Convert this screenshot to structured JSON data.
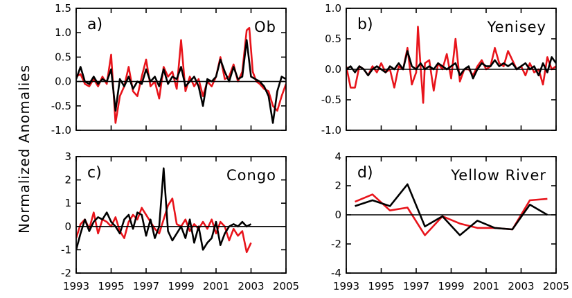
{
  "ylabel": "Normalized Anomalies",
  "colors": {
    "series_a": "#e8141b",
    "series_b": "#000000",
    "axes": "#000000"
  },
  "chart_data": [
    {
      "type": "line",
      "panel": "a)",
      "title": "Ob",
      "xlim": [
        1993,
        2005
      ],
      "ylim": [
        -1.0,
        1.5
      ],
      "yticks": [
        -1.0,
        -0.5,
        0.0,
        0.5,
        1.0,
        1.5
      ],
      "yticklabels": [
        "-1.0",
        "-0.5",
        "0.0",
        "0.5",
        "1.0",
        "1.5"
      ],
      "xticks": [
        1993,
        1995,
        1997,
        1999,
        2001,
        2003,
        2005
      ],
      "xticklabels": [],
      "zero_line": true,
      "series": [
        {
          "color": "#e8141b",
          "x": [
            1993.0,
            1993.25,
            1993.5,
            1993.75,
            1994.0,
            1994.25,
            1994.5,
            1994.75,
            1995.0,
            1995.25,
            1995.5,
            1995.75,
            1996.0,
            1996.25,
            1996.5,
            1996.75,
            1997.0,
            1997.25,
            1997.5,
            1997.75,
            1998.0,
            1998.25,
            1998.5,
            1998.75,
            1999.0,
            1999.25,
            1999.5,
            1999.75,
            2000.0,
            2000.25,
            2000.5,
            2000.75,
            2001.0,
            2001.25,
            2001.5,
            2001.75,
            2002.0,
            2002.25,
            2002.5,
            2002.75,
            2002.9,
            2003.1,
            2003.3,
            2003.5,
            2003.75,
            2004.0,
            2004.25,
            2004.5,
            2004.75,
            2005.0
          ],
          "y": [
            0.1,
            0.15,
            -0.05,
            -0.1,
            0.05,
            -0.1,
            0.1,
            -0.05,
            0.55,
            -0.85,
            -0.3,
            -0.1,
            0.3,
            -0.2,
            -0.3,
            0.1,
            0.45,
            -0.1,
            0.0,
            -0.35,
            0.3,
            0.1,
            0.2,
            -0.15,
            0.85,
            -0.2,
            0.1,
            -0.1,
            0.05,
            -0.3,
            0.0,
            -0.1,
            0.1,
            0.5,
            0.05,
            0.1,
            0.35,
            0.0,
            0.2,
            1.05,
            1.1,
            0.2,
            0.0,
            -0.05,
            -0.15,
            -0.2,
            -0.5,
            -0.6,
            -0.3,
            -0.05
          ]
        },
        {
          "color": "#000000",
          "x": [
            1993.0,
            1993.25,
            1993.5,
            1993.75,
            1994.0,
            1994.25,
            1994.5,
            1994.75,
            1995.0,
            1995.25,
            1995.5,
            1995.75,
            1996.0,
            1996.25,
            1996.5,
            1996.75,
            1997.0,
            1997.25,
            1997.5,
            1997.75,
            1998.0,
            1998.25,
            1998.5,
            1998.75,
            1999.0,
            1999.25,
            1999.5,
            1999.75,
            2000.0,
            2000.25,
            2000.5,
            2000.75,
            2001.0,
            2001.25,
            2001.5,
            2001.75,
            2002.0,
            2002.25,
            2002.5,
            2002.75,
            2003.0,
            2003.25,
            2003.5,
            2003.75,
            2004.0,
            2004.25,
            2004.5,
            2004.75,
            2005.0
          ],
          "y": [
            0.05,
            0.3,
            0.0,
            -0.05,
            0.1,
            -0.05,
            0.05,
            0.0,
            0.25,
            -0.6,
            0.05,
            -0.1,
            0.1,
            -0.15,
            0.0,
            -0.05,
            0.25,
            0.0,
            0.1,
            -0.1,
            0.25,
            -0.05,
            0.1,
            0.05,
            0.3,
            -0.1,
            0.0,
            0.1,
            -0.1,
            -0.5,
            0.05,
            0.0,
            0.1,
            0.45,
            0.2,
            0.0,
            0.3,
            0.05,
            0.1,
            0.85,
            0.1,
            0.05,
            0.0,
            -0.1,
            -0.3,
            -0.85,
            -0.2,
            0.1,
            0.05
          ]
        }
      ]
    },
    {
      "type": "line",
      "panel": "b)",
      "title": "Yenisey",
      "xlim": [
        1993,
        2005
      ],
      "ylim": [
        -1.0,
        1.0
      ],
      "yticks": [
        -1.0,
        -0.5,
        0.0,
        0.5,
        1.0
      ],
      "yticklabels": [
        "-1.0",
        "-0.5",
        "0.0",
        "0.5",
        "1.0"
      ],
      "xticks": [
        1993,
        1995,
        1997,
        1999,
        2001,
        2003,
        2005
      ],
      "xticklabels": [],
      "zero_line": true,
      "series": [
        {
          "color": "#e8141b",
          "x": [
            1993.0,
            1993.25,
            1993.5,
            1993.75,
            1994.0,
            1994.25,
            1994.5,
            1994.75,
            1995.0,
            1995.25,
            1995.5,
            1995.75,
            1996.0,
            1996.25,
            1996.5,
            1996.75,
            1997.0,
            1997.1,
            1997.25,
            1997.4,
            1997.5,
            1997.75,
            1998.0,
            1998.25,
            1998.5,
            1998.75,
            1999.0,
            1999.25,
            1999.5,
            1999.75,
            2000.0,
            2000.25,
            2000.5,
            2000.75,
            2001.0,
            2001.25,
            2001.5,
            2001.75,
            2002.0,
            2002.25,
            2002.5,
            2002.75,
            2003.0,
            2003.25,
            2003.5,
            2003.75,
            2004.0,
            2004.25,
            2004.5,
            2004.75,
            2005.0
          ],
          "y": [
            0.05,
            -0.3,
            -0.3,
            0.05,
            0.0,
            -0.1,
            0.05,
            -0.05,
            0.1,
            -0.05,
            0.0,
            -0.3,
            0.05,
            0.0,
            0.35,
            -0.25,
            -0.05,
            0.7,
            0.05,
            -0.55,
            0.1,
            0.15,
            -0.35,
            0.1,
            0.0,
            0.25,
            -0.15,
            0.5,
            -0.2,
            0.0,
            0.0,
            -0.1,
            0.05,
            0.15,
            0.0,
            0.05,
            0.35,
            0.1,
            0.05,
            0.3,
            0.15,
            0.0,
            0.05,
            -0.1,
            0.1,
            -0.05,
            0.0,
            -0.25,
            0.2,
            0.0,
            0.05
          ]
        },
        {
          "color": "#000000",
          "x": [
            1993.0,
            1993.25,
            1993.5,
            1993.75,
            1994.0,
            1994.25,
            1994.5,
            1994.75,
            1995.0,
            1995.25,
            1995.5,
            1995.75,
            1996.0,
            1996.25,
            1996.5,
            1996.75,
            1997.0,
            1997.25,
            1997.5,
            1997.75,
            1998.0,
            1998.25,
            1998.5,
            1998.75,
            1999.0,
            1999.25,
            1999.5,
            1999.75,
            2000.0,
            2000.25,
            2000.5,
            2000.75,
            2001.0,
            2001.25,
            2001.5,
            2001.75,
            2002.0,
            2002.25,
            2002.5,
            2002.75,
            2003.0,
            2003.25,
            2003.5,
            2003.75,
            2004.0,
            2004.25,
            2004.5,
            2004.75,
            2005.0
          ],
          "y": [
            0.0,
            0.05,
            -0.05,
            0.05,
            0.0,
            -0.1,
            0.0,
            0.05,
            0.0,
            -0.05,
            0.05,
            0.0,
            0.1,
            0.0,
            0.3,
            0.05,
            0.0,
            0.1,
            0.0,
            0.05,
            0.0,
            0.1,
            0.05,
            0.0,
            0.05,
            0.1,
            -0.1,
            0.0,
            0.05,
            -0.15,
            0.0,
            0.1,
            0.05,
            0.05,
            0.15,
            0.05,
            0.1,
            0.05,
            0.1,
            0.0,
            0.05,
            0.1,
            0.0,
            0.05,
            -0.1,
            0.1,
            -0.05,
            0.2,
            0.1
          ]
        }
      ]
    },
    {
      "type": "line",
      "panel": "c)",
      "title": "Congo",
      "xlim": [
        1993,
        2005
      ],
      "ylim": [
        -2,
        3
      ],
      "yticks": [
        -2,
        -1,
        0,
        1,
        2,
        3
      ],
      "yticklabels": [
        "-2",
        "-1",
        "0",
        "1",
        "2",
        "3"
      ],
      "xticks": [
        1993,
        1995,
        1997,
        1999,
        2001,
        2003,
        2005
      ],
      "xticklabels": [
        "1993",
        "1995",
        "1997",
        "1999",
        "2001",
        "2003",
        "2005"
      ],
      "zero_line": true,
      "series": [
        {
          "color": "#e8141b",
          "x": [
            1993.0,
            1993.25,
            1993.5,
            1993.75,
            1994.0,
            1994.25,
            1994.5,
            1994.75,
            1995.0,
            1995.25,
            1995.5,
            1995.75,
            1996.0,
            1996.25,
            1996.5,
            1996.75,
            1997.0,
            1997.25,
            1997.5,
            1997.75,
            1998.0,
            1998.25,
            1998.5,
            1998.75,
            1999.0,
            1999.25,
            1999.5,
            1999.75,
            2000.0,
            2000.25,
            2000.5,
            2000.75,
            2001.0,
            2001.25,
            2001.5,
            2001.75,
            2002.0,
            2002.25,
            2002.5,
            2002.75,
            2003.0
          ],
          "y": [
            -0.5,
            0.1,
            0.3,
            -0.1,
            0.6,
            -0.3,
            0.3,
            0.2,
            0.0,
            0.4,
            -0.2,
            -0.5,
            0.2,
            0.5,
            0.3,
            0.8,
            0.5,
            0.2,
            -0.1,
            -0.3,
            0.3,
            0.9,
            1.2,
            0.1,
            0.0,
            0.3,
            -0.2,
            0.1,
            -0.1,
            0.2,
            -0.1,
            0.3,
            -0.3,
            0.2,
            0.0,
            -0.6,
            -0.1,
            -0.4,
            -0.2,
            -1.1,
            -0.7
          ]
        },
        {
          "color": "#000000",
          "x": [
            1993.0,
            1993.25,
            1993.5,
            1993.75,
            1994.0,
            1994.25,
            1994.5,
            1994.75,
            1995.0,
            1995.25,
            1995.5,
            1995.75,
            1996.0,
            1996.25,
            1996.5,
            1996.75,
            1997.0,
            1997.25,
            1997.5,
            1997.75,
            1998.0,
            1998.25,
            1998.5,
            1998.75,
            1999.0,
            1999.25,
            1999.5,
            1999.75,
            2000.0,
            2000.25,
            2000.5,
            2000.75,
            2001.0,
            2001.25,
            2001.5,
            2001.75,
            2002.0,
            2002.25,
            2002.5,
            2002.75,
            2003.0
          ],
          "y": [
            -1.0,
            -0.3,
            0.3,
            -0.2,
            0.2,
            0.4,
            0.3,
            0.6,
            0.2,
            0.0,
            -0.3,
            0.3,
            0.5,
            -0.1,
            0.6,
            0.5,
            -0.4,
            0.3,
            -0.5,
            0.0,
            2.5,
            -0.2,
            -0.6,
            -0.3,
            0.0,
            -0.5,
            0.3,
            -0.7,
            0.0,
            -1.0,
            -0.7,
            -0.5,
            0.2,
            -0.8,
            -0.3,
            0.0,
            0.1,
            0.0,
            0.2,
            0.0,
            0.1
          ]
        }
      ]
    },
    {
      "type": "line",
      "panel": "d)",
      "title": "Yellow River",
      "xlim": [
        1993,
        2005
      ],
      "ylim": [
        -4,
        4
      ],
      "yticks": [
        -4,
        -2,
        0,
        2,
        4
      ],
      "yticklabels": [
        "-4",
        "-2",
        "0",
        "2",
        "4"
      ],
      "xticks": [
        1993,
        1995,
        1997,
        1999,
        2001,
        2003,
        2005
      ],
      "xticklabels": [
        "1993",
        "1995",
        "1997",
        "1999",
        "2001",
        "2003",
        "2005"
      ],
      "zero_line": true,
      "series": [
        {
          "color": "#e8141b",
          "x": [
            1993.5,
            1994.5,
            1995.5,
            1996.5,
            1997.5,
            1998.5,
            1999.5,
            2000.5,
            2001.5,
            2002.5,
            2003.5,
            2004.5
          ],
          "y": [
            0.9,
            1.4,
            0.3,
            0.5,
            -1.4,
            -0.1,
            -0.6,
            -0.9,
            -0.9,
            -1.0,
            1.0,
            1.1
          ]
        },
        {
          "color": "#000000",
          "x": [
            1993.5,
            1994.5,
            1995.5,
            1996.5,
            1997.5,
            1998.5,
            1999.5,
            2000.5,
            2001.5,
            2002.5,
            2003.5,
            2004.5
          ],
          "y": [
            0.6,
            1.0,
            0.6,
            2.1,
            -0.8,
            -0.1,
            -1.4,
            -0.4,
            -0.9,
            -1.0,
            0.7,
            0.0
          ]
        }
      ]
    }
  ]
}
